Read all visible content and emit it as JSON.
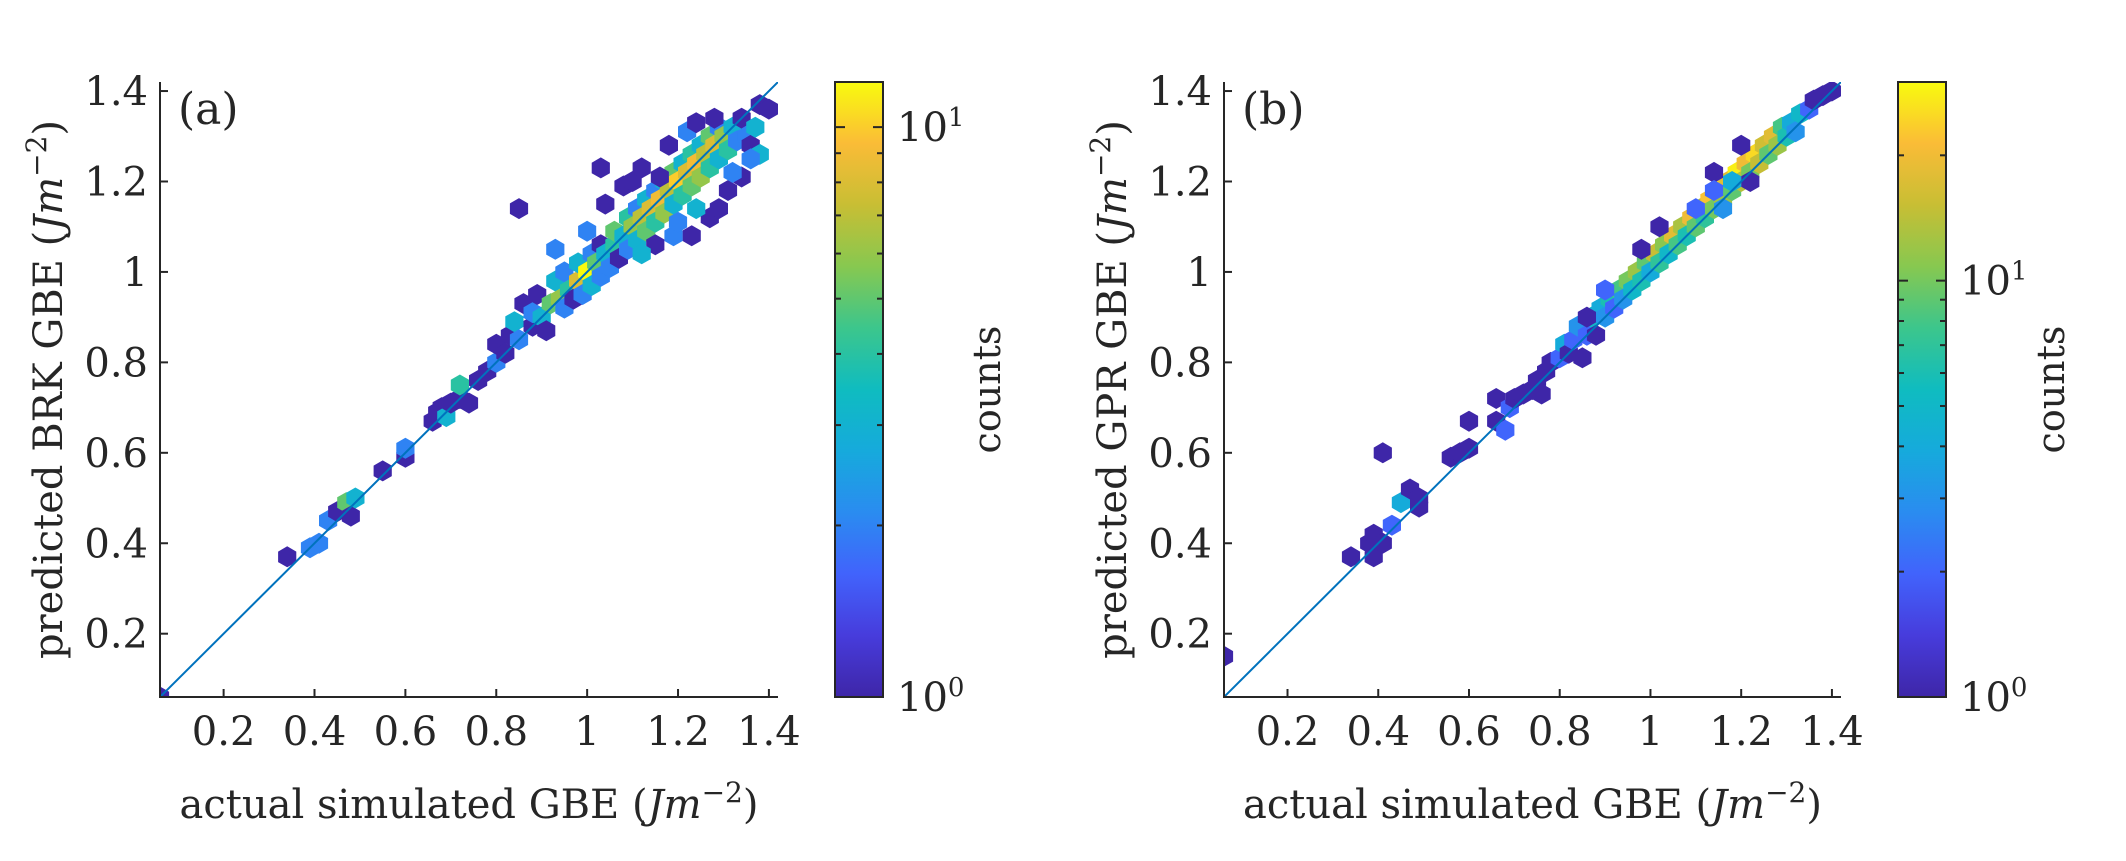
{
  "chart_data": [
    {
      "type": "heatmap",
      "subtype": "hexbin-scatter",
      "panel_label": "(a)",
      "xlabel": "actual simulated GBE",
      "xlabel_unit_base": "Jm",
      "xlabel_unit_exp": "−2",
      "ylabel": "predicted BRK GBE",
      "ylabel_unit_base": "Jm",
      "ylabel_unit_exp": "−2",
      "xlim": [
        0.06,
        1.42
      ],
      "ylim": [
        0.06,
        1.42
      ],
      "xticks": [
        0.2,
        0.4,
        0.6,
        0.8,
        1.0,
        1.2,
        1.4
      ],
      "xtick_labels": [
        "0.2",
        "0.4",
        "0.6",
        "0.8",
        "1",
        "1.2",
        "1.4"
      ],
      "yticks": [
        0.2,
        0.4,
        0.6,
        0.8,
        1.0,
        1.2,
        1.4
      ],
      "ytick_labels": [
        "0.2",
        "0.4",
        "0.6",
        "0.8",
        "1",
        "1.2",
        "1.4"
      ],
      "reference_line": "y = x",
      "colorbar": {
        "label": "counts",
        "scale": "log",
        "min": 1,
        "max": 12,
        "ticks": [
          1,
          10
        ],
        "tick_base": "10",
        "tick_exps": [
          "0",
          "1"
        ]
      },
      "points": [
        [
          0.06,
          0.06,
          1
        ],
        [
          0.34,
          0.37,
          1
        ],
        [
          0.39,
          0.39,
          2
        ],
        [
          0.41,
          0.4,
          2
        ],
        [
          0.43,
          0.45,
          2
        ],
        [
          0.45,
          0.47,
          1
        ],
        [
          0.47,
          0.49,
          5
        ],
        [
          0.48,
          0.46,
          1
        ],
        [
          0.49,
          0.5,
          3
        ],
        [
          0.55,
          0.56,
          1
        ],
        [
          0.6,
          0.59,
          1
        ],
        [
          0.6,
          0.61,
          2
        ],
        [
          0.66,
          0.67,
          1
        ],
        [
          0.67,
          0.69,
          1
        ],
        [
          0.68,
          0.7,
          1
        ],
        [
          0.69,
          0.68,
          3
        ],
        [
          0.7,
          0.71,
          1
        ],
        [
          0.72,
          0.72,
          1
        ],
        [
          0.72,
          0.75,
          4
        ],
        [
          0.74,
          0.71,
          1
        ],
        [
          0.76,
          0.76,
          1
        ],
        [
          0.78,
          0.78,
          1
        ],
        [
          0.8,
          0.8,
          2
        ],
        [
          0.8,
          0.84,
          1
        ],
        [
          0.82,
          0.82,
          1
        ],
        [
          0.83,
          0.86,
          1
        ],
        [
          0.84,
          0.89,
          3
        ],
        [
          0.85,
          0.85,
          2
        ],
        [
          0.86,
          0.93,
          1
        ],
        [
          0.88,
          0.88,
          1
        ],
        [
          0.88,
          0.91,
          2
        ],
        [
          0.89,
          0.95,
          1
        ],
        [
          0.9,
          0.9,
          3
        ],
        [
          0.91,
          0.87,
          1
        ],
        [
          0.92,
          0.93,
          5
        ],
        [
          0.93,
          0.98,
          3
        ],
        [
          0.94,
          0.94,
          6
        ],
        [
          0.95,
          0.92,
          2
        ],
        [
          0.95,
          1.0,
          2
        ],
        [
          0.96,
          0.96,
          4
        ],
        [
          0.97,
          0.94,
          1
        ],
        [
          0.98,
          0.98,
          8
        ],
        [
          0.98,
          1.02,
          3
        ],
        [
          0.99,
          0.95,
          2
        ],
        [
          1.0,
          1.0,
          12
        ],
        [
          1.01,
          0.97,
          3
        ],
        [
          1.01,
          1.04,
          2
        ],
        [
          1.02,
          1.02,
          5
        ],
        [
          1.03,
          0.99,
          2
        ],
        [
          1.03,
          1.06,
          1
        ],
        [
          1.04,
          1.04,
          3
        ],
        [
          1.05,
          1.01,
          2
        ],
        [
          1.06,
          1.06,
          4
        ],
        [
          1.06,
          1.09,
          5
        ],
        [
          1.07,
          1.03,
          1
        ],
        [
          1.08,
          1.08,
          3
        ],
        [
          1.09,
          1.05,
          2
        ],
        [
          1.09,
          1.12,
          4
        ],
        [
          1.1,
          1.1,
          6
        ],
        [
          1.11,
          1.07,
          3
        ],
        [
          1.11,
          1.14,
          2
        ],
        [
          1.12,
          1.12,
          7
        ],
        [
          1.13,
          1.09,
          5
        ],
        [
          1.13,
          1.16,
          3
        ],
        [
          1.14,
          1.14,
          8
        ],
        [
          1.15,
          1.11,
          4
        ],
        [
          1.15,
          1.18,
          2
        ],
        [
          1.16,
          1.16,
          9
        ],
        [
          1.17,
          1.13,
          6
        ],
        [
          1.17,
          1.2,
          3
        ],
        [
          1.18,
          1.18,
          7
        ],
        [
          1.19,
          1.15,
          3
        ],
        [
          1.19,
          1.22,
          5
        ],
        [
          1.2,
          1.2,
          10
        ],
        [
          1.21,
          1.17,
          4
        ],
        [
          1.21,
          1.24,
          3
        ],
        [
          1.22,
          1.22,
          8
        ],
        [
          1.23,
          1.19,
          5
        ],
        [
          1.23,
          1.26,
          4
        ],
        [
          1.24,
          1.24,
          9
        ],
        [
          1.25,
          1.21,
          6
        ],
        [
          1.25,
          1.28,
          3
        ],
        [
          1.26,
          1.26,
          7
        ],
        [
          1.27,
          1.23,
          4
        ],
        [
          1.27,
          1.3,
          5
        ],
        [
          1.28,
          1.28,
          8
        ],
        [
          1.29,
          1.25,
          3
        ],
        [
          1.29,
          1.32,
          2
        ],
        [
          1.3,
          1.3,
          6
        ],
        [
          1.31,
          1.27,
          4
        ],
        [
          1.32,
          1.32,
          3
        ],
        [
          1.33,
          1.29,
          2
        ],
        [
          1.34,
          1.34,
          1
        ],
        [
          1.35,
          1.3,
          2
        ],
        [
          1.36,
          1.28,
          1
        ],
        [
          1.37,
          1.32,
          3
        ],
        [
          1.38,
          1.37,
          1
        ],
        [
          1.4,
          1.36,
          1
        ],
        [
          0.85,
          1.14,
          1
        ],
        [
          1.03,
          1.23,
          1
        ],
        [
          1.08,
          1.19,
          1
        ],
        [
          1.1,
          1.2,
          1
        ],
        [
          1.12,
          1.23,
          1
        ],
        [
          1.16,
          1.21,
          1
        ],
        [
          1.04,
          1.15,
          1
        ],
        [
          1.0,
          1.09,
          2
        ],
        [
          1.23,
          1.08,
          1
        ],
        [
          1.27,
          1.12,
          1
        ],
        [
          1.31,
          1.18,
          1
        ],
        [
          1.34,
          1.21,
          1
        ],
        [
          1.29,
          1.14,
          1
        ],
        [
          1.19,
          1.08,
          2
        ],
        [
          1.15,
          1.06,
          1
        ],
        [
          0.93,
          1.05,
          2
        ],
        [
          1.38,
          1.26,
          3
        ],
        [
          1.36,
          1.25,
          2
        ],
        [
          1.32,
          1.22,
          2
        ],
        [
          1.24,
          1.14,
          3
        ],
        [
          1.2,
          1.11,
          2
        ],
        [
          1.12,
          1.04,
          3
        ],
        [
          1.18,
          1.28,
          1
        ],
        [
          1.22,
          1.31,
          2
        ],
        [
          1.28,
          1.34,
          1
        ],
        [
          1.24,
          1.33,
          1
        ]
      ]
    },
    {
      "type": "heatmap",
      "subtype": "hexbin-scatter",
      "panel_label": "(b)",
      "xlabel": "actual simulated GBE",
      "xlabel_unit_base": "Jm",
      "xlabel_unit_exp": "−2",
      "ylabel": "predicted GPR GBE",
      "ylabel_unit_base": "Jm",
      "ylabel_unit_exp": "−2",
      "xlim": [
        0.06,
        1.42
      ],
      "ylim": [
        0.06,
        1.42
      ],
      "xticks": [
        0.2,
        0.4,
        0.6,
        0.8,
        1.0,
        1.2,
        1.4
      ],
      "xtick_labels": [
        "0.2",
        "0.4",
        "0.6",
        "0.8",
        "1",
        "1.2",
        "1.4"
      ],
      "yticks": [
        0.2,
        0.4,
        0.6,
        0.8,
        1.0,
        1.2,
        1.4
      ],
      "ytick_labels": [
        "0.2",
        "0.4",
        "0.6",
        "0.8",
        "1",
        "1.2",
        "1.4"
      ],
      "reference_line": "y = x",
      "colorbar": {
        "label": "counts",
        "scale": "log",
        "min": 1,
        "max": 30,
        "ticks": [
          1,
          10
        ],
        "tick_base": "10",
        "tick_exps": [
          "0",
          "1"
        ]
      },
      "points": [
        [
          0.06,
          0.15,
          1
        ],
        [
          0.34,
          0.37,
          1
        ],
        [
          0.38,
          0.4,
          1
        ],
        [
          0.39,
          0.37,
          1
        ],
        [
          0.39,
          0.42,
          1
        ],
        [
          0.41,
          0.4,
          1
        ],
        [
          0.41,
          0.6,
          1
        ],
        [
          0.43,
          0.44,
          2
        ],
        [
          0.45,
          0.49,
          4
        ],
        [
          0.47,
          0.52,
          1
        ],
        [
          0.49,
          0.48,
          1
        ],
        [
          0.49,
          0.5,
          1
        ],
        [
          0.56,
          0.59,
          1
        ],
        [
          0.58,
          0.6,
          1
        ],
        [
          0.6,
          0.61,
          1
        ],
        [
          0.6,
          0.67,
          1
        ],
        [
          0.66,
          0.67,
          1
        ],
        [
          0.66,
          0.72,
          1
        ],
        [
          0.68,
          0.65,
          2
        ],
        [
          0.69,
          0.7,
          2
        ],
        [
          0.7,
          0.72,
          1
        ],
        [
          0.72,
          0.73,
          1
        ],
        [
          0.74,
          0.74,
          1
        ],
        [
          0.75,
          0.76,
          1
        ],
        [
          0.76,
          0.73,
          1
        ],
        [
          0.77,
          0.78,
          1
        ],
        [
          0.78,
          0.8,
          1
        ],
        [
          0.8,
          0.81,
          2
        ],
        [
          0.81,
          0.84,
          4
        ],
        [
          0.82,
          0.82,
          1
        ],
        [
          0.83,
          0.85,
          2
        ],
        [
          0.84,
          0.88,
          3
        ],
        [
          0.85,
          0.81,
          1
        ],
        [
          0.86,
          0.86,
          2
        ],
        [
          0.87,
          0.9,
          5
        ],
        [
          0.88,
          0.86,
          1
        ],
        [
          0.89,
          0.92,
          4
        ],
        [
          0.9,
          0.9,
          3
        ],
        [
          0.91,
          0.94,
          6
        ],
        [
          0.92,
          0.92,
          2
        ],
        [
          0.93,
          0.96,
          8
        ],
        [
          0.94,
          0.94,
          3
        ],
        [
          0.95,
          0.98,
          10
        ],
        [
          0.96,
          0.96,
          5
        ],
        [
          0.97,
          1.0,
          12
        ],
        [
          0.98,
          0.98,
          6
        ],
        [
          0.99,
          1.02,
          9
        ],
        [
          1.0,
          1.0,
          4
        ],
        [
          1.01,
          1.04,
          15
        ],
        [
          1.02,
          1.02,
          7
        ],
        [
          1.03,
          1.06,
          11
        ],
        [
          1.04,
          1.04,
          5
        ],
        [
          1.05,
          1.08,
          18
        ],
        [
          1.06,
          1.06,
          8
        ],
        [
          1.07,
          1.1,
          13
        ],
        [
          1.08,
          1.08,
          6
        ],
        [
          1.09,
          1.12,
          20
        ],
        [
          1.1,
          1.1,
          9
        ],
        [
          1.11,
          1.14,
          14
        ],
        [
          1.12,
          1.12,
          7
        ],
        [
          1.13,
          1.16,
          22
        ],
        [
          1.14,
          1.14,
          10
        ],
        [
          1.15,
          1.18,
          25
        ],
        [
          1.16,
          1.16,
          12
        ],
        [
          1.17,
          1.2,
          18
        ],
        [
          1.18,
          1.18,
          9
        ],
        [
          1.19,
          1.22,
          28
        ],
        [
          1.2,
          1.2,
          14
        ],
        [
          1.21,
          1.24,
          20
        ],
        [
          1.22,
          1.22,
          10
        ],
        [
          1.23,
          1.26,
          25
        ],
        [
          1.24,
          1.24,
          15
        ],
        [
          1.25,
          1.28,
          16
        ],
        [
          1.26,
          1.26,
          9
        ],
        [
          1.27,
          1.3,
          18
        ],
        [
          1.28,
          1.28,
          12
        ],
        [
          1.29,
          1.32,
          8
        ],
        [
          1.3,
          1.3,
          6
        ],
        [
          1.31,
          1.33,
          4
        ],
        [
          1.32,
          1.31,
          3
        ],
        [
          1.33,
          1.35,
          5
        ],
        [
          1.35,
          1.36,
          2
        ],
        [
          1.36,
          1.38,
          1
        ],
        [
          1.38,
          1.39,
          1
        ],
        [
          1.4,
          1.4,
          1
        ],
        [
          1.02,
          1.1,
          1
        ],
        [
          1.14,
          1.22,
          1
        ],
        [
          1.2,
          1.28,
          1
        ],
        [
          1.22,
          1.2,
          1
        ],
        [
          1.14,
          1.18,
          2
        ],
        [
          1.1,
          1.14,
          2
        ],
        [
          0.98,
          1.05,
          1
        ],
        [
          0.9,
          0.96,
          2
        ],
        [
          0.86,
          0.9,
          1
        ],
        [
          1.16,
          1.14,
          3
        ],
        [
          1.18,
          1.2,
          4
        ]
      ]
    }
  ]
}
